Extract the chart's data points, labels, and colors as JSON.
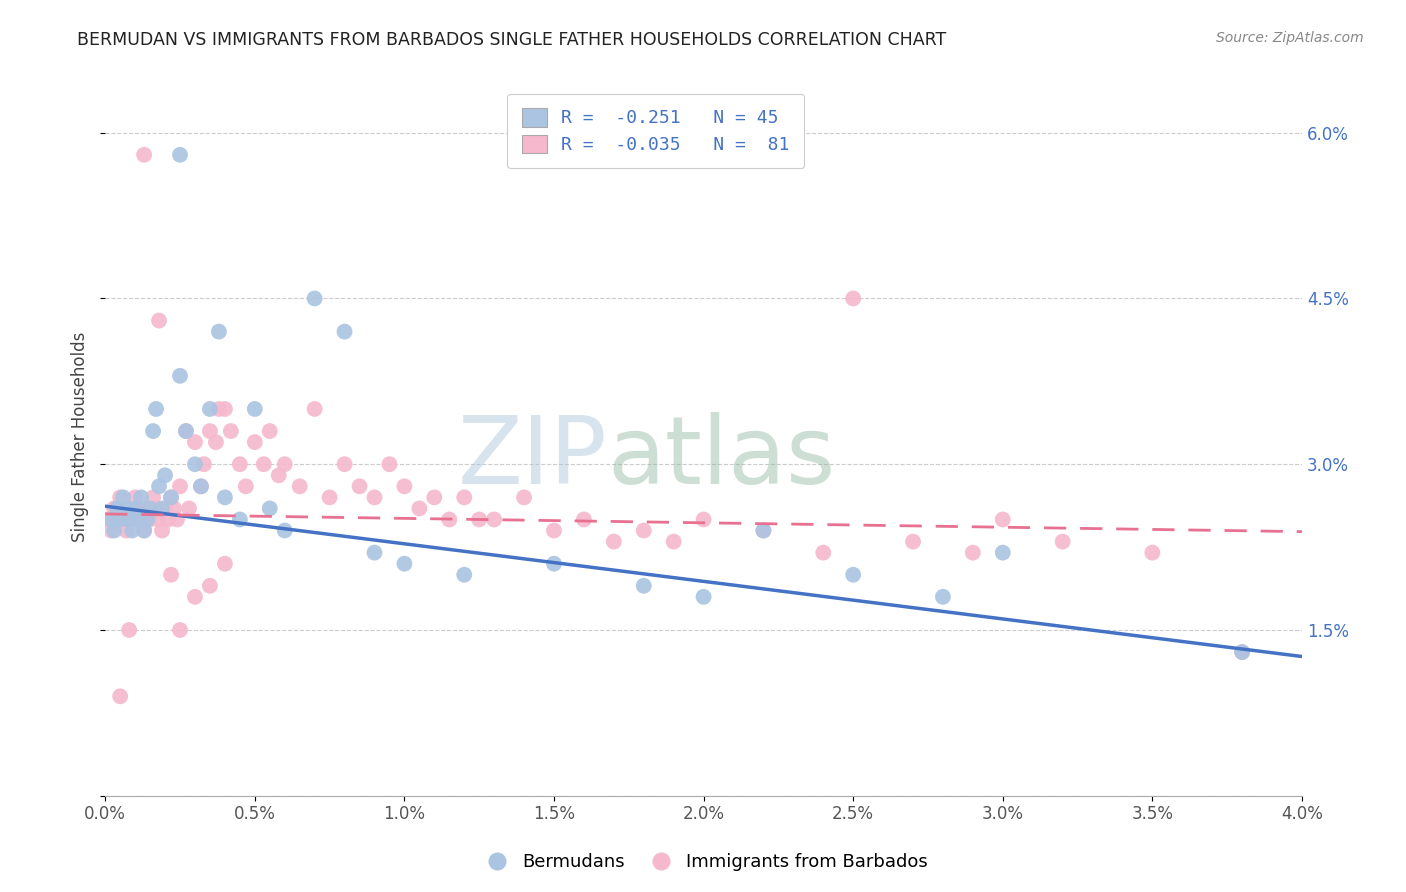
{
  "title": "BERMUDAN VS IMMIGRANTS FROM BARBADOS SINGLE FATHER HOUSEHOLDS CORRELATION CHART",
  "source": "Source: ZipAtlas.com",
  "ylabel": "Single Father Households",
  "xlim": [
    0.0,
    4.0
  ],
  "ylim": [
    0.0,
    6.5
  ],
  "legend_labels": [
    "Bermudans",
    "Immigrants from Barbados"
  ],
  "bermudan_color": "#aac4e2",
  "barbados_color": "#f5b8cc",
  "bermudan_line_color": "#4472c4",
  "barbados_line_color": "#e87090",
  "R_bermudan": -0.251,
  "N_bermudan": 45,
  "R_barbados": -0.035,
  "N_barbados": 81,
  "watermark_zip": "ZIP",
  "watermark_atlas": "atlas",
  "bermudan_x": [
    0.02,
    0.03,
    0.04,
    0.05,
    0.06,
    0.07,
    0.08,
    0.09,
    0.1,
    0.11,
    0.12,
    0.13,
    0.14,
    0.15,
    0.16,
    0.17,
    0.18,
    0.19,
    0.2,
    0.22,
    0.25,
    0.27,
    0.3,
    0.32,
    0.35,
    0.38,
    0.4,
    0.45,
    0.5,
    0.55,
    0.6,
    0.7,
    0.8,
    0.9,
    1.0,
    1.2,
    1.5,
    1.8,
    2.0,
    2.2,
    2.5,
    2.8,
    3.0,
    3.8,
    0.25
  ],
  "bermudan_y": [
    2.5,
    2.4,
    2.6,
    2.5,
    2.7,
    2.6,
    2.5,
    2.4,
    2.6,
    2.5,
    2.7,
    2.4,
    2.5,
    2.6,
    3.3,
    3.5,
    2.8,
    2.6,
    2.9,
    2.7,
    3.8,
    3.3,
    3.0,
    2.8,
    3.5,
    4.2,
    2.7,
    2.5,
    3.5,
    2.6,
    2.4,
    4.5,
    4.2,
    2.2,
    2.1,
    2.0,
    2.1,
    1.9,
    1.8,
    2.4,
    2.0,
    1.8,
    2.2,
    1.3,
    5.8
  ],
  "barbados_x": [
    0.01,
    0.02,
    0.03,
    0.04,
    0.05,
    0.06,
    0.07,
    0.08,
    0.09,
    0.1,
    0.11,
    0.12,
    0.13,
    0.14,
    0.15,
    0.16,
    0.17,
    0.18,
    0.19,
    0.2,
    0.21,
    0.22,
    0.23,
    0.24,
    0.25,
    0.27,
    0.28,
    0.3,
    0.32,
    0.33,
    0.35,
    0.37,
    0.38,
    0.4,
    0.42,
    0.45,
    0.47,
    0.5,
    0.53,
    0.55,
    0.58,
    0.6,
    0.65,
    0.7,
    0.75,
    0.8,
    0.85,
    0.9,
    0.95,
    1.0,
    1.05,
    1.1,
    1.15,
    1.2,
    1.25,
    1.3,
    1.4,
    1.5,
    1.6,
    1.7,
    1.8,
    1.9,
    2.0,
    2.2,
    2.4,
    2.5,
    2.7,
    2.9,
    3.0,
    3.2,
    3.5,
    3.8,
    0.25,
    0.3,
    0.35,
    0.4,
    0.22,
    0.18,
    0.13,
    0.08,
    0.05
  ],
  "barbados_y": [
    2.5,
    2.4,
    2.6,
    2.5,
    2.7,
    2.5,
    2.4,
    2.6,
    2.5,
    2.7,
    2.6,
    2.5,
    2.4,
    2.6,
    2.5,
    2.7,
    2.6,
    2.5,
    2.4,
    2.6,
    2.5,
    2.7,
    2.6,
    2.5,
    2.8,
    3.3,
    2.6,
    3.2,
    2.8,
    3.0,
    3.3,
    3.2,
    3.5,
    3.5,
    3.3,
    3.0,
    2.8,
    3.2,
    3.0,
    3.3,
    2.9,
    3.0,
    2.8,
    3.5,
    2.7,
    3.0,
    2.8,
    2.7,
    3.0,
    2.8,
    2.6,
    2.7,
    2.5,
    2.7,
    2.5,
    2.5,
    2.7,
    2.4,
    2.5,
    2.3,
    2.4,
    2.3,
    2.5,
    2.4,
    2.2,
    4.5,
    2.3,
    2.2,
    2.5,
    2.3,
    2.2,
    1.3,
    1.5,
    1.8,
    1.9,
    2.1,
    2.0,
    4.3,
    5.8,
    1.5,
    0.9
  ]
}
